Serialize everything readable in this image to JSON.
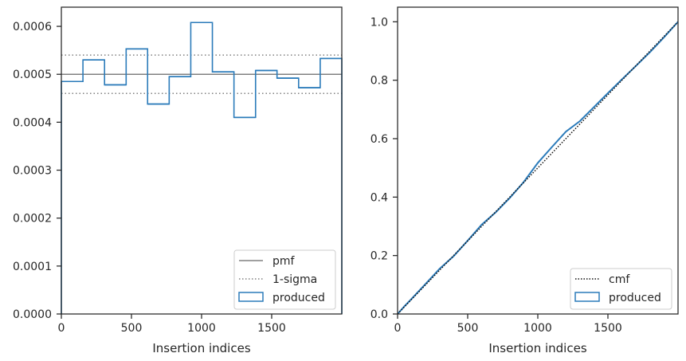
{
  "chart_data": [
    {
      "type": "step",
      "xlabel": "Insertion indices",
      "ylabel": "",
      "xlim": [
        0,
        2000
      ],
      "ylim": [
        0,
        0.00064
      ],
      "xticks": [
        0,
        500,
        1000,
        1500
      ],
      "xtick_labels": [
        "0",
        "500",
        "1000",
        "1500"
      ],
      "yticks": [
        0,
        0.0001,
        0.0002,
        0.0003,
        0.0004,
        0.0005,
        0.0006
      ],
      "ytick_labels": [
        "0.0000",
        "0.0001",
        "0.0002",
        "0.0003",
        "0.0004",
        "0.0005",
        "0.0006"
      ],
      "grid": false,
      "legend_position": "lower right",
      "series": [
        {
          "name": "produced",
          "kind": "histogram-step",
          "color": "#2b7bba",
          "bin_edges": [
            0,
            154,
            308,
            462,
            615,
            769,
            923,
            1077,
            1231,
            1385,
            1538,
            1692,
            1846,
            2000
          ],
          "values": [
            0.000485,
            0.00053,
            0.000478,
            0.000553,
            0.000438,
            0.000495,
            0.000608,
            0.000505,
            0.00041,
            0.000508,
            0.000492,
            0.000472,
            0.000533
          ]
        },
        {
          "name": "pmf",
          "kind": "hline",
          "color": "#808080",
          "y": 0.0005
        },
        {
          "name": "1-sigma",
          "kind": "hline-pair",
          "color": "#808080",
          "y": [
            0.00046,
            0.00054
          ]
        }
      ]
    },
    {
      "type": "line",
      "xlabel": "Insertion indices",
      "ylabel": "",
      "xlim": [
        0,
        2000
      ],
      "ylim": [
        0,
        1.05
      ],
      "xticks": [
        0,
        500,
        1000,
        1500
      ],
      "xtick_labels": [
        "0",
        "500",
        "1000",
        "1500"
      ],
      "yticks": [
        0,
        0.2,
        0.4,
        0.6,
        0.8,
        1.0
      ],
      "ytick_labels": [
        "0.0",
        "0.2",
        "0.4",
        "0.6",
        "0.8",
        "1.0"
      ],
      "grid": false,
      "legend_position": "lower right",
      "series": [
        {
          "name": "produced",
          "kind": "empirical-cdf",
          "color": "#2b7bba",
          "x": [
            0,
            50,
            100,
            200,
            300,
            400,
            500,
            600,
            700,
            800,
            900,
            1000,
            1100,
            1200,
            1300,
            1400,
            1500,
            1600,
            1700,
            1800,
            1900,
            2000
          ],
          "y": [
            0,
            0.027,
            0.052,
            0.103,
            0.155,
            0.198,
            0.251,
            0.306,
            0.348,
            0.397,
            0.452,
            0.517,
            0.571,
            0.624,
            0.66,
            0.708,
            0.756,
            0.803,
            0.849,
            0.896,
            0.947,
            1.0
          ]
        },
        {
          "name": "cmf",
          "kind": "line",
          "color": "#111111",
          "x": [
            0,
            2000
          ],
          "y": [
            0,
            1.0
          ]
        }
      ]
    }
  ],
  "legends": [
    {
      "entries": [
        {
          "label": "pmf"
        },
        {
          "label": "1-sigma"
        },
        {
          "label": "produced"
        }
      ]
    },
    {
      "entries": [
        {
          "label": "cmf"
        },
        {
          "label": "produced"
        }
      ]
    }
  ]
}
